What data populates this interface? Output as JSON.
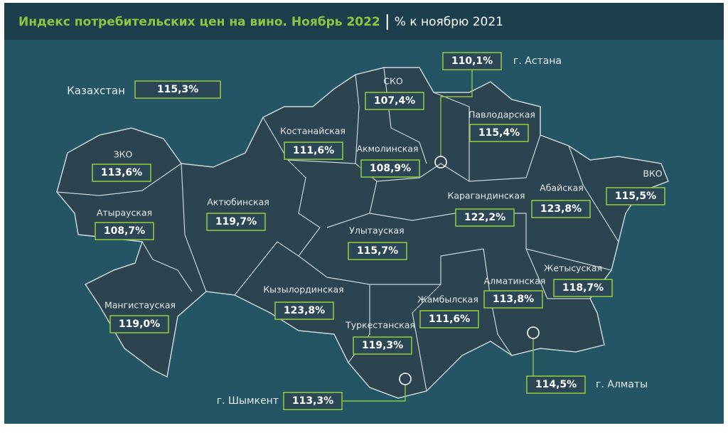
{
  "header": {
    "title": "Индекс потребительских цен на вино. Ноябрь 2022",
    "subtitle": "% к ноябрю 2021"
  },
  "country": {
    "name": "Казахстан",
    "value": "115,3%"
  },
  "regions": [
    {
      "name": "ЗКО",
      "value": "113,6%"
    },
    {
      "name": "Атырауская",
      "value": "108,7%"
    },
    {
      "name": "Мангистауская",
      "value": "119,0%"
    },
    {
      "name": "Актюбинская",
      "value": "119,7%"
    },
    {
      "name": "Костанайская",
      "value": "111,6%"
    },
    {
      "name": "СКО",
      "value": "107,4%"
    },
    {
      "name": "Акмолинская",
      "value": "108,9%"
    },
    {
      "name": "г. Астана",
      "value": "110,1%"
    },
    {
      "name": "Павлодарская",
      "value": "115,4%"
    },
    {
      "name": "Карагандинская",
      "value": "122,2%"
    },
    {
      "name": "Улытауская",
      "value": "115,7%"
    },
    {
      "name": "Абайская",
      "value": "123,8%"
    },
    {
      "name": "ВКО",
      "value": "115,5%"
    },
    {
      "name": "Кызылординская",
      "value": "123,8%"
    },
    {
      "name": "Жамбылская",
      "value": "111,6%"
    },
    {
      "name": "Алматинская",
      "value": "113,8%"
    },
    {
      "name": "Жетысуская",
      "value": "118,7%"
    },
    {
      "name": "Туркестанская",
      "value": "119,3%"
    },
    {
      "name": "г. Шымкент",
      "value": "113,3%"
    },
    {
      "name": "г. Алматы",
      "value": "114,5%"
    }
  ]
}
